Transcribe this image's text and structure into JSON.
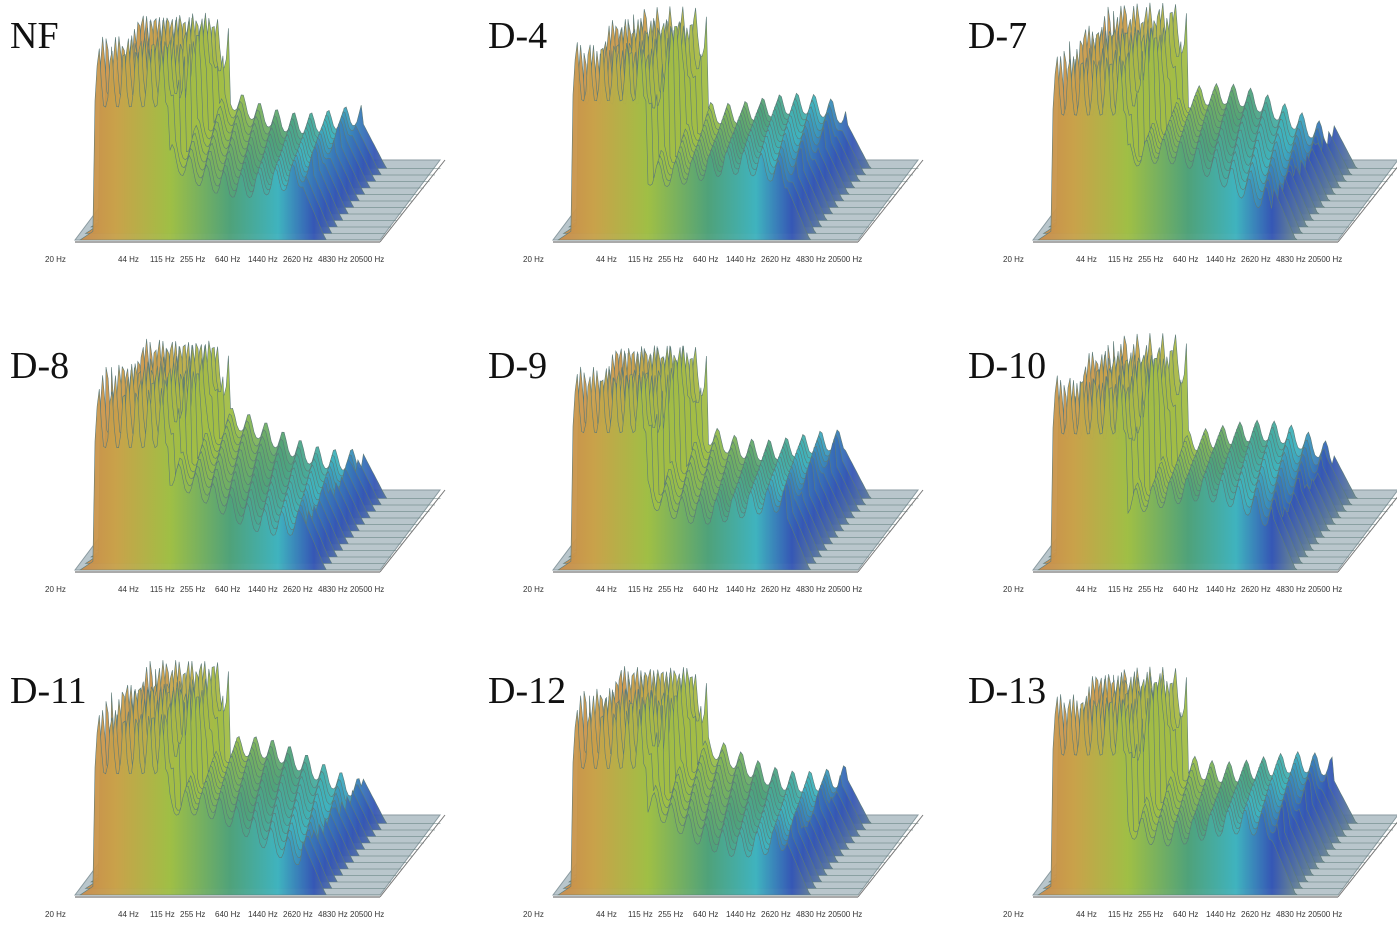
{
  "panels": [
    {
      "label": "NF"
    },
    {
      "label": "D-4"
    },
    {
      "label": "D-7"
    },
    {
      "label": "D-8"
    },
    {
      "label": "D-9"
    },
    {
      "label": "D-10"
    },
    {
      "label": "D-11"
    },
    {
      "label": "D-12"
    },
    {
      "label": "D-13"
    }
  ],
  "frequency_ticks": [
    "20 Hz",
    "44 Hz",
    "115 Hz",
    "255 Hz",
    "640 Hz",
    "1440 Hz",
    "2620 Hz",
    "4830 Hz",
    "20500 Hz"
  ]
}
